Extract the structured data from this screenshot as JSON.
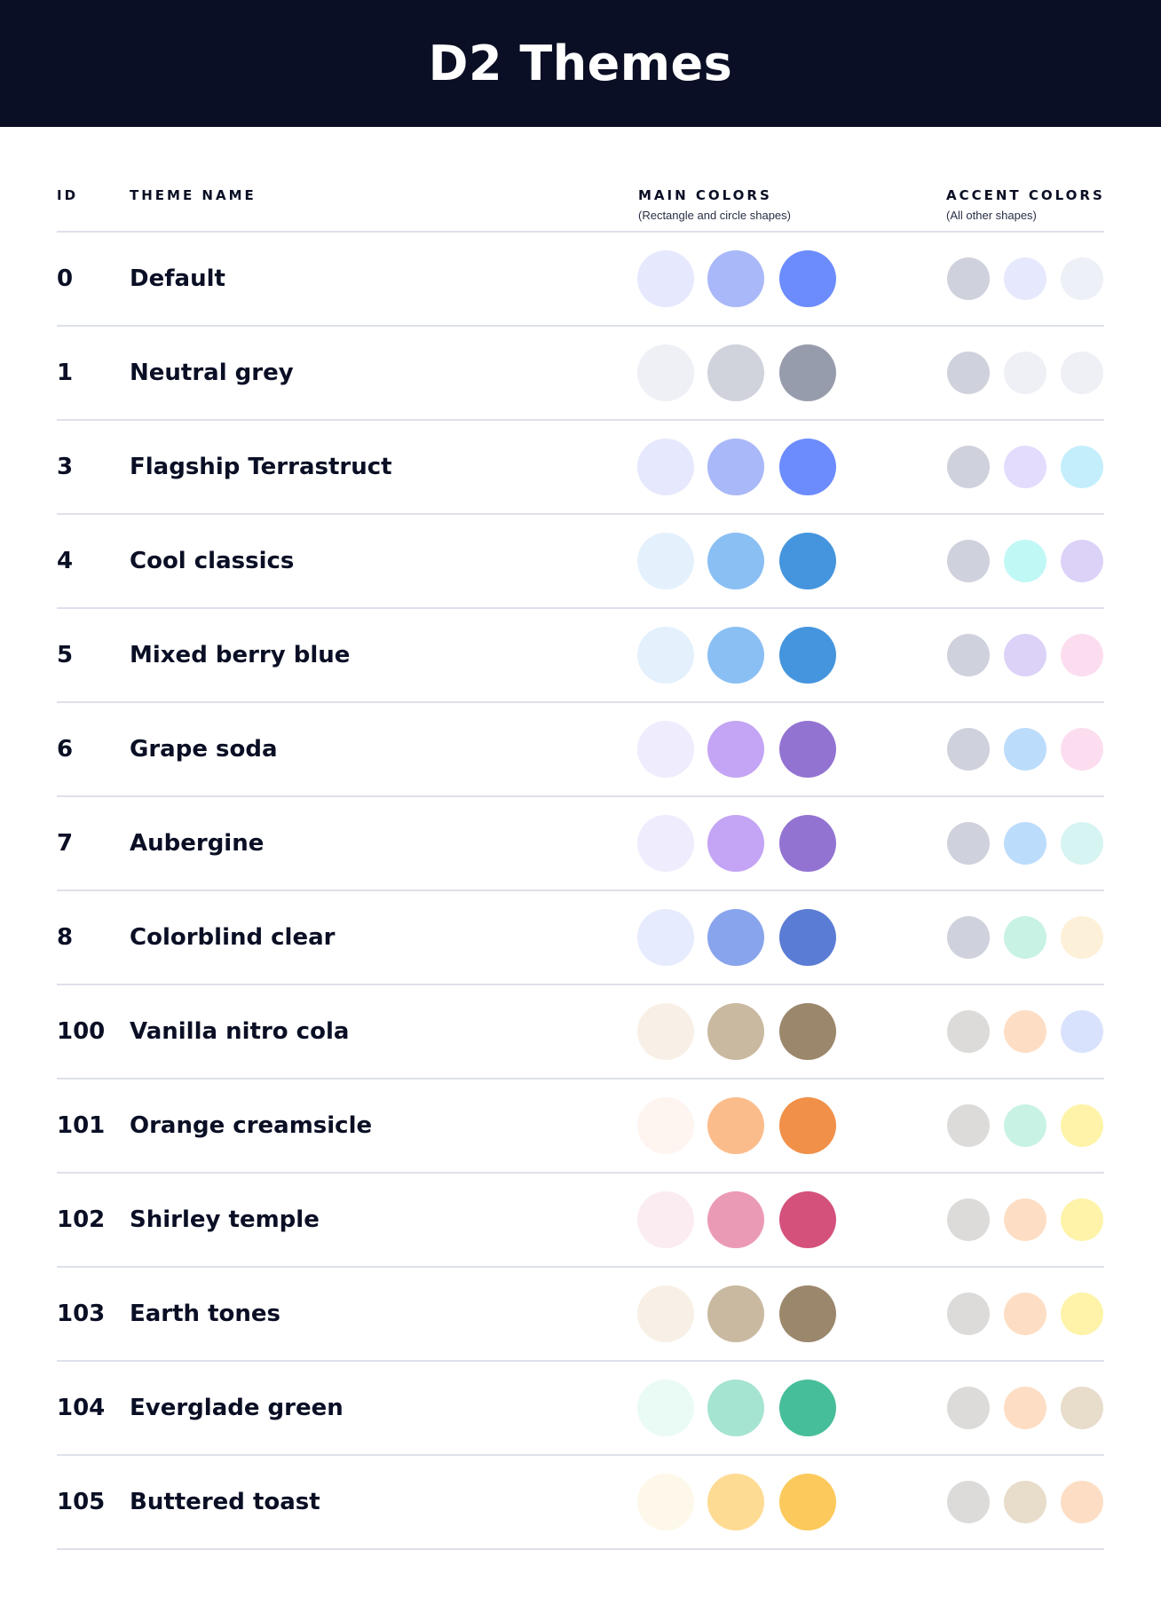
{
  "title": "D2 Themes",
  "columns": {
    "id": "ID",
    "name": "THEME NAME",
    "main": "MAIN COLORS",
    "main_sub": "(Rectangle and circle shapes)",
    "accent": "ACCENT COLORS",
    "accent_sub": "(All other shapes)"
  },
  "themes": [
    {
      "id": "0",
      "name": "Default",
      "main": [
        "#E6E9FD",
        "#A9B8F8",
        "#6C8CFD"
      ],
      "accent": [
        "#CFD1DC",
        "#E6E9FD",
        "#EEF0F8"
      ]
    },
    {
      "id": "1",
      "name": "Neutral grey",
      "main": [
        "#EEF0F6",
        "#D0D2DC",
        "#979CAD"
      ],
      "accent": [
        "#CFD1DC",
        "#EEF0F6",
        "#EEF0F6"
      ]
    },
    {
      "id": "3",
      "name": "Flagship Terrastruct",
      "main": [
        "#E6E9FD",
        "#A9B8F8",
        "#6C8CFD"
      ],
      "accent": [
        "#CFD1DC",
        "#E4DCFD",
        "#C4EEFC"
      ]
    },
    {
      "id": "4",
      "name": "Cool classics",
      "main": [
        "#E4F1FD",
        "#8ABFF4",
        "#4595DE"
      ],
      "accent": [
        "#CFD1DC",
        "#C0F8F6",
        "#DCD2F8"
      ]
    },
    {
      "id": "5",
      "name": "Mixed berry blue",
      "main": [
        "#E4F1FD",
        "#8ABFF4",
        "#4595DE"
      ],
      "accent": [
        "#CFD1DC",
        "#DCD2F8",
        "#FCDDF0"
      ]
    },
    {
      "id": "6",
      "name": "Grape soda",
      "main": [
        "#EFECFD",
        "#C4A4F4",
        "#9373D2"
      ],
      "accent": [
        "#CFD1DC",
        "#BCDCFC",
        "#FCDDF0"
      ]
    },
    {
      "id": "7",
      "name": "Aubergine",
      "main": [
        "#EFECFD",
        "#C4A4F4",
        "#9373D2"
      ],
      "accent": [
        "#CFD1DC",
        "#BCDCFC",
        "#D6F4F2"
      ]
    },
    {
      "id": "8",
      "name": "Colorblind clear",
      "main": [
        "#E6ECFD",
        "#88A4EC",
        "#5A7CD4"
      ],
      "accent": [
        "#CFD1DC",
        "#C8F2E4",
        "#FDF0D8"
      ]
    },
    {
      "id": "100",
      "name": "Vanilla nitro cola",
      "main": [
        "#F8F0E6",
        "#C9B9A0",
        "#9B876C"
      ],
      "accent": [
        "#DCDBD9",
        "#FDDEC4",
        "#D8E2FC"
      ]
    },
    {
      "id": "101",
      "name": "Orange creamsicle",
      "main": [
        "#FEF5F0",
        "#FBBC8C",
        "#F19049"
      ],
      "accent": [
        "#DCDBD9",
        "#C8F2E4",
        "#FEF3A8"
      ]
    },
    {
      "id": "102",
      "name": "Shirley temple",
      "main": [
        "#FBECF2",
        "#EB9AB6",
        "#D4517C"
      ],
      "accent": [
        "#DCDBD9",
        "#FDDEC4",
        "#FEF3A8"
      ]
    },
    {
      "id": "103",
      "name": "Earth tones",
      "main": [
        "#F8F0E6",
        "#C9B9A0",
        "#9B876C"
      ],
      "accent": [
        "#DCDBD9",
        "#FDDEC4",
        "#FEF3A8"
      ]
    },
    {
      "id": "104",
      "name": "Everglade green",
      "main": [
        "#E9FBF4",
        "#A6E4D2",
        "#47BE9A"
      ],
      "accent": [
        "#DCDBD9",
        "#FDDEC4",
        "#E8DCCA"
      ]
    },
    {
      "id": "105",
      "name": "Buttered toast",
      "main": [
        "#FEF8EA",
        "#FEDB92",
        "#FCC95C"
      ],
      "accent": [
        "#DCDBD9",
        "#E8DCCA",
        "#FDDEC4"
      ]
    }
  ]
}
